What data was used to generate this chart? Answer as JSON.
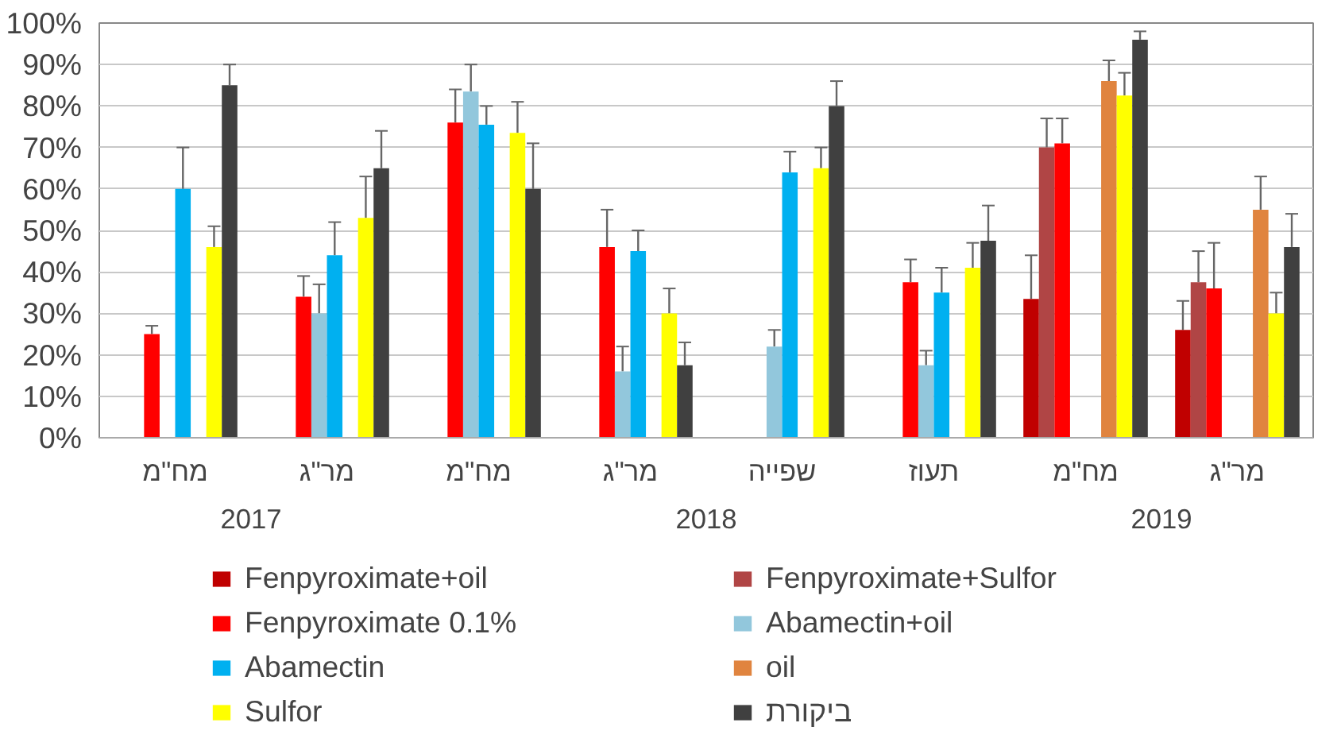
{
  "chart_data": {
    "type": "bar",
    "categories": [
      "מח\"מ",
      "מר\"ג",
      "מח\"מ",
      "מר\"ג",
      "שפייה",
      "תעוז",
      "מח\"מ",
      "מר\"ג"
    ],
    "annotations": [
      "2017",
      "2018",
      "2019"
    ],
    "ylim": [
      0,
      100
    ],
    "yticks": [
      {
        "value": 0,
        "label": "0%"
      },
      {
        "value": 10,
        "label": "10%"
      },
      {
        "value": 20,
        "label": "20%"
      },
      {
        "value": 30,
        "label": "30%"
      },
      {
        "value": 40,
        "label": "40%"
      },
      {
        "value": 50,
        "label": "50%"
      },
      {
        "value": 60,
        "label": "60%"
      },
      {
        "value": 70,
        "label": "70%"
      },
      {
        "value": 80,
        "label": "80%"
      },
      {
        "value": 90,
        "label": "90%"
      },
      {
        "value": 100,
        "label": "100%"
      }
    ],
    "grid": "y",
    "legend": "bottom",
    "series": [
      {
        "name": "Fenpyroximate+oil",
        "color": "#c00000",
        "values": [
          null,
          null,
          null,
          null,
          null,
          null,
          33.5,
          26
        ],
        "errors": [
          null,
          null,
          null,
          null,
          null,
          null,
          [
            33.5,
            44
          ],
          [
            26,
            33
          ]
        ]
      },
      {
        "name": "Fenpyroximate+Sulfor",
        "color": "#b04545",
        "values": [
          null,
          null,
          null,
          null,
          null,
          null,
          70,
          37.5
        ],
        "errors": [
          null,
          null,
          null,
          null,
          null,
          null,
          [
            70,
            77
          ],
          [
            37.5,
            45
          ]
        ]
      },
      {
        "name": "Fenpyroximate 0.1%",
        "color": "#ff0000",
        "values": [
          25,
          34,
          76,
          46,
          null,
          37.5,
          71,
          36
        ],
        "errors": [
          [
            25,
            27
          ],
          [
            34,
            39
          ],
          [
            76,
            84
          ],
          [
            46,
            55
          ],
          null,
          [
            37.5,
            43
          ],
          [
            71,
            77
          ],
          [
            36,
            47
          ]
        ]
      },
      {
        "name": "Abamectin+oil",
        "color": "#92c7dc",
        "values": [
          null,
          30,
          83.5,
          16,
          22,
          17.5,
          null,
          null
        ],
        "errors": [
          null,
          [
            30,
            37
          ],
          [
            83.5,
            90
          ],
          [
            16,
            22
          ],
          [
            22,
            26
          ],
          [
            17.5,
            21
          ],
          null,
          null
        ]
      },
      {
        "name": "Abamectin",
        "color": "#00b0f0",
        "values": [
          60,
          44,
          75.5,
          45,
          64,
          35,
          null,
          null
        ],
        "errors": [
          [
            60,
            70
          ],
          [
            44,
            52
          ],
          [
            75.5,
            80
          ],
          [
            45,
            50
          ],
          [
            64,
            69
          ],
          [
            35,
            41
          ],
          null,
          null
        ]
      },
      {
        "name": "oil",
        "color": "#e0843f",
        "values": [
          null,
          null,
          null,
          null,
          null,
          null,
          86,
          55
        ],
        "errors": [
          null,
          null,
          null,
          null,
          null,
          null,
          [
            86,
            91
          ],
          [
            55,
            63
          ]
        ]
      },
      {
        "name": "Sulfor",
        "color": "#ffff00",
        "values": [
          46,
          53,
          73.5,
          30,
          65,
          41,
          82.5,
          30
        ],
        "errors": [
          [
            46,
            51
          ],
          [
            53,
            63
          ],
          [
            73.5,
            81
          ],
          [
            30,
            36
          ],
          [
            65,
            70
          ],
          [
            41,
            47
          ],
          [
            82.5,
            88
          ],
          [
            30,
            35
          ]
        ]
      },
      {
        "name": "ביקורת",
        "color": "#404040",
        "values": [
          85,
          65,
          60,
          17.5,
          80,
          47.5,
          96,
          46
        ],
        "errors": [
          [
            85,
            90
          ],
          [
            65,
            74
          ],
          [
            60,
            71
          ],
          [
            17.5,
            23
          ],
          [
            80,
            86
          ],
          [
            47.5,
            56
          ],
          [
            96,
            98
          ],
          [
            46,
            54
          ]
        ]
      }
    ]
  }
}
